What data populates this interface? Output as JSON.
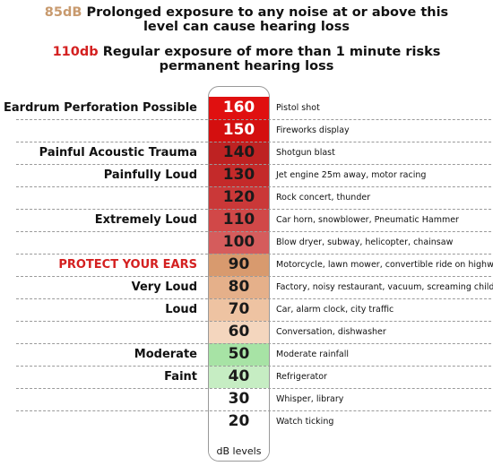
{
  "header": {
    "line1": {
      "value": "85dB",
      "text_a": "Prolonged exposure to any noise at or above this",
      "text_b": "level can cause hearing loss",
      "color": "#c89a6e"
    },
    "line2": {
      "value": "110db",
      "text_a": "Regular exposure of more than 1 minute risks",
      "text_b": "permanent hearing loss",
      "color": "#d42020"
    }
  },
  "chart_data": {
    "type": "table",
    "scale_caption": "dB levels",
    "rows": [
      {
        "db": 160,
        "label": "Eardrum Perforation Possible",
        "source": "Pistol shot",
        "color": "#e01010",
        "text": "light"
      },
      {
        "db": 150,
        "label": "",
        "source": "Fireworks display",
        "color": "#d40f0f",
        "text": "light"
      },
      {
        "db": 140,
        "label": "Painful Acoustic Trauma",
        "source": "Shotgun blast",
        "color": "#be2222",
        "text": "dark"
      },
      {
        "db": 130,
        "label": "Painfully Loud",
        "source": "Jet engine 25m away, motor racing",
        "color": "#c42a2a",
        "text": "dark"
      },
      {
        "db": 120,
        "label": "",
        "source": "Rock concert, thunder",
        "color": "#ca3838",
        "text": "dark"
      },
      {
        "db": 110,
        "label": "Extremely Loud",
        "source": "Car horn, snowblower, Pneumatic Hammer",
        "color": "#d14848",
        "text": "dark"
      },
      {
        "db": 100,
        "label": "",
        "source": "Blow dryer, subway, helicopter, chainsaw",
        "color": "#d55c5c",
        "text": "dark"
      },
      {
        "db": 90,
        "label": "PROTECT YOUR EARS",
        "source": "Motorcycle, lawn mower, convertible ride on highway",
        "color": "#d89a6e",
        "text": "dark",
        "alert": true
      },
      {
        "db": 80,
        "label": "Very Loud",
        "source": "Factory, noisy restaurant, vacuum, screaming child",
        "color": "#e5b08a",
        "text": "dark"
      },
      {
        "db": 70,
        "label": "Loud",
        "source": "Car, alarm clock, city traffic",
        "color": "#eec3a2",
        "text": "dark"
      },
      {
        "db": 60,
        "label": "",
        "source": "Conversation, dishwasher",
        "color": "#f4d6be",
        "text": "dark"
      },
      {
        "db": 50,
        "label": "Moderate",
        "source": "Moderate rainfall",
        "color": "#a7e3a5",
        "text": "dark"
      },
      {
        "db": 40,
        "label": "Faint",
        "source": "Refrigerator",
        "color": "#c6edc3",
        "text": "dark"
      },
      {
        "db": 30,
        "label": "",
        "source": "Whisper, library",
        "color": "#ffffff",
        "text": "dark"
      },
      {
        "db": 20,
        "label": "",
        "source": "Watch ticking",
        "color": "#ffffff",
        "text": "dark"
      }
    ]
  }
}
